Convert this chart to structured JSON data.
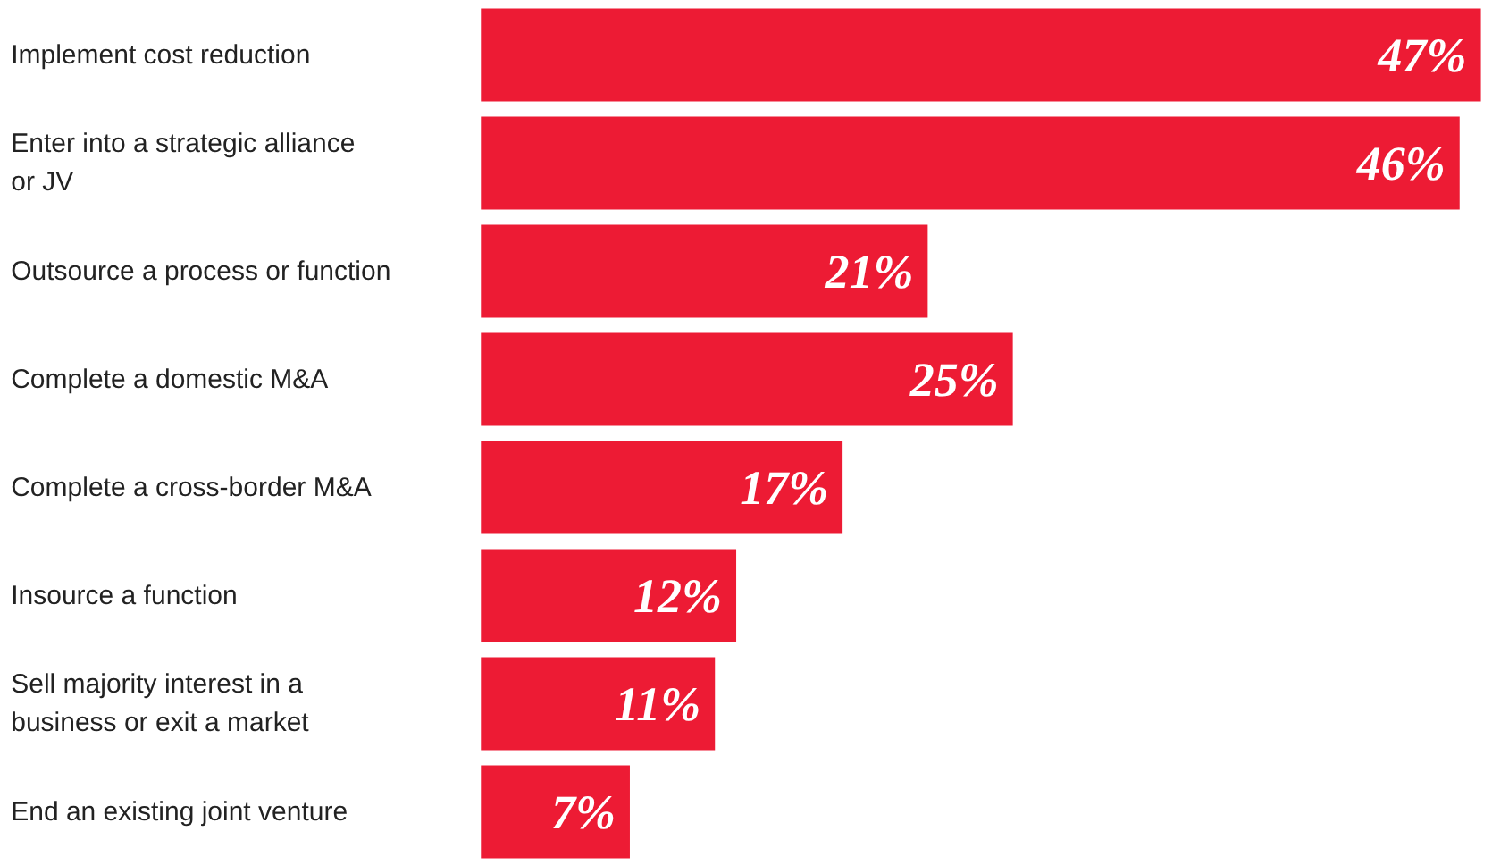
{
  "chart_data": {
    "type": "bar",
    "orientation": "horizontal",
    "categories": [
      "Implement cost reduction",
      "Enter into a strategic alliance or JV",
      "Outsource a process or function",
      "Complete a domestic M&A",
      "Complete a cross-border M&A",
      "Insource a function",
      "Sell majority interest in a business or exit a market",
      "End an existing joint venture"
    ],
    "values": [
      47,
      46,
      21,
      25,
      17,
      12,
      11,
      7
    ],
    "value_labels": [
      "47%",
      "46%",
      "21%",
      "25%",
      "17%",
      "12%",
      "11%",
      "7%"
    ],
    "color": "#ed1b34",
    "grid": false
  }
}
